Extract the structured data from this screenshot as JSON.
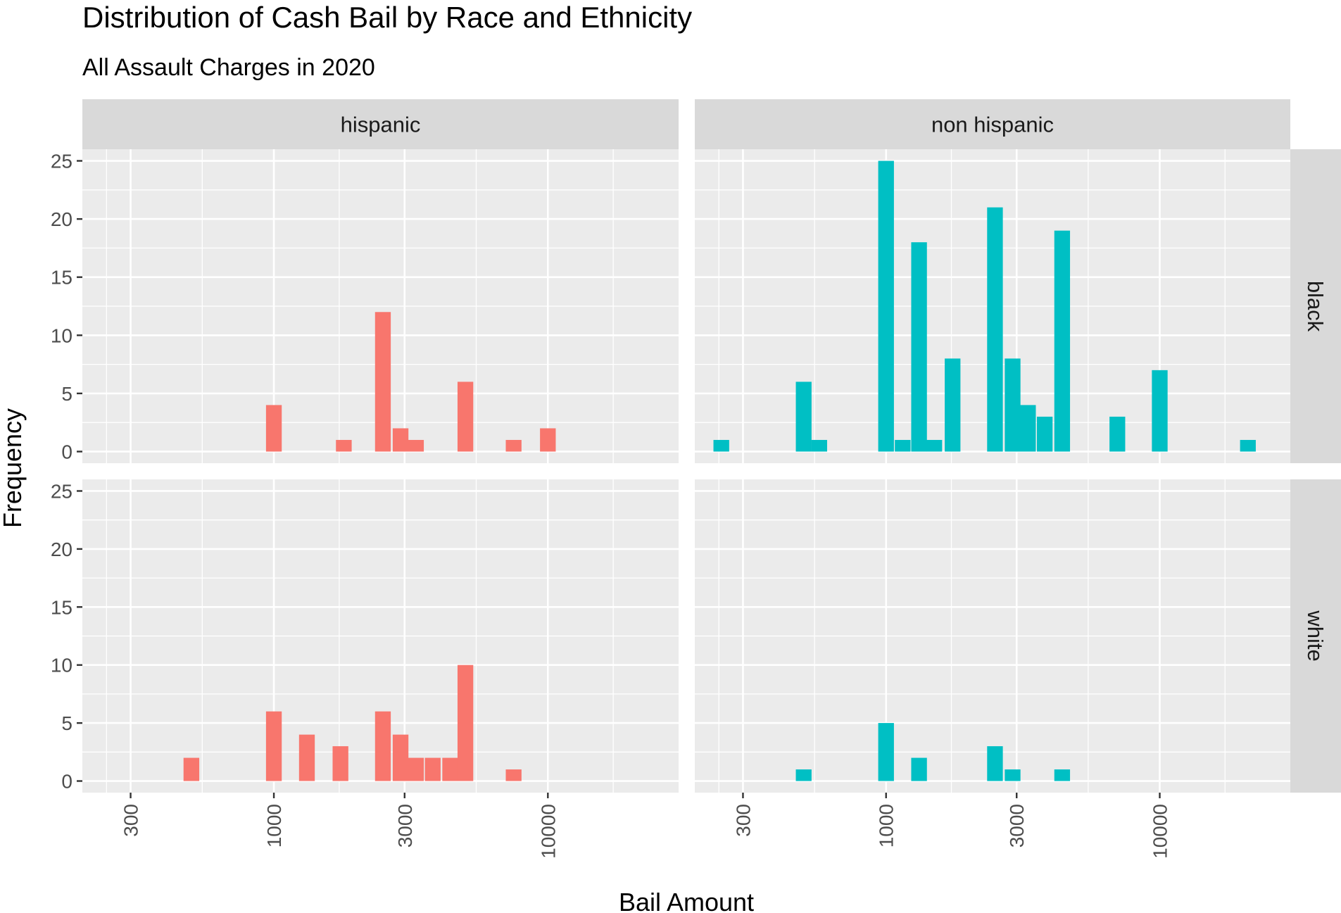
{
  "chart_data": {
    "type": "bar",
    "title": "Distribution of Cash Bail by Race and Ethnicity",
    "subtitle": "All Assault Charges in 2020",
    "xlabel": "Bail Amount",
    "ylabel": "Frequency",
    "x_scale": "log10",
    "x_ticks": [
      300,
      1000,
      3000,
      10000
    ],
    "x_tick_labels": [
      "300",
      "1000",
      "3000",
      "10000"
    ],
    "xlim": [
      200,
      30000
    ],
    "y_ticks": [
      0,
      5,
      10,
      15,
      20,
      25
    ],
    "y_tick_labels": [
      "0",
      "5",
      "10",
      "15",
      "20",
      "25"
    ],
    "ylim": [
      -1,
      26
    ],
    "grid": true,
    "legend": "none",
    "colors": {
      "hispanic": "#F8766D",
      "non hispanic": "#00BFC4"
    },
    "column_facets": [
      "hispanic",
      "non hispanic"
    ],
    "row_facets": [
      "black",
      "white"
    ],
    "bin_width_log10": 0.0574,
    "panels": [
      {
        "column": "hispanic",
        "row": "black",
        "bars": [
          {
            "x": 1000,
            "count": 4
          },
          {
            "x": 1800,
            "count": 1
          },
          {
            "x": 2500,
            "count": 12
          },
          {
            "x": 2900,
            "count": 2
          },
          {
            "x": 3300,
            "count": 1
          },
          {
            "x": 5000,
            "count": 6
          },
          {
            "x": 7500,
            "count": 1
          },
          {
            "x": 10000,
            "count": 2
          }
        ]
      },
      {
        "column": "non hispanic",
        "row": "black",
        "bars": [
          {
            "x": 250,
            "count": 1
          },
          {
            "x": 500,
            "count": 6
          },
          {
            "x": 570,
            "count": 1
          },
          {
            "x": 1000,
            "count": 25
          },
          {
            "x": 1150,
            "count": 1
          },
          {
            "x": 1320,
            "count": 18
          },
          {
            "x": 1500,
            "count": 1
          },
          {
            "x": 1750,
            "count": 8
          },
          {
            "x": 2500,
            "count": 21
          },
          {
            "x": 2900,
            "count": 8
          },
          {
            "x": 3300,
            "count": 4
          },
          {
            "x": 3800,
            "count": 3
          },
          {
            "x": 4400,
            "count": 19
          },
          {
            "x": 7000,
            "count": 3
          },
          {
            "x": 10000,
            "count": 7
          },
          {
            "x": 21000,
            "count": 1
          }
        ]
      },
      {
        "column": "hispanic",
        "row": "white",
        "bars": [
          {
            "x": 500,
            "count": 2
          },
          {
            "x": 1000,
            "count": 6
          },
          {
            "x": 1320,
            "count": 4
          },
          {
            "x": 1750,
            "count": 3
          },
          {
            "x": 2500,
            "count": 6
          },
          {
            "x": 2900,
            "count": 4
          },
          {
            "x": 3300,
            "count": 2
          },
          {
            "x": 3800,
            "count": 2
          },
          {
            "x": 4400,
            "count": 2
          },
          {
            "x": 5000,
            "count": 10
          },
          {
            "x": 7500,
            "count": 1
          }
        ]
      },
      {
        "column": "non hispanic",
        "row": "white",
        "bars": [
          {
            "x": 500,
            "count": 1
          },
          {
            "x": 1000,
            "count": 5
          },
          {
            "x": 1320,
            "count": 2
          },
          {
            "x": 2500,
            "count": 3
          },
          {
            "x": 2900,
            "count": 1
          },
          {
            "x": 4400,
            "count": 1
          }
        ]
      }
    ]
  }
}
